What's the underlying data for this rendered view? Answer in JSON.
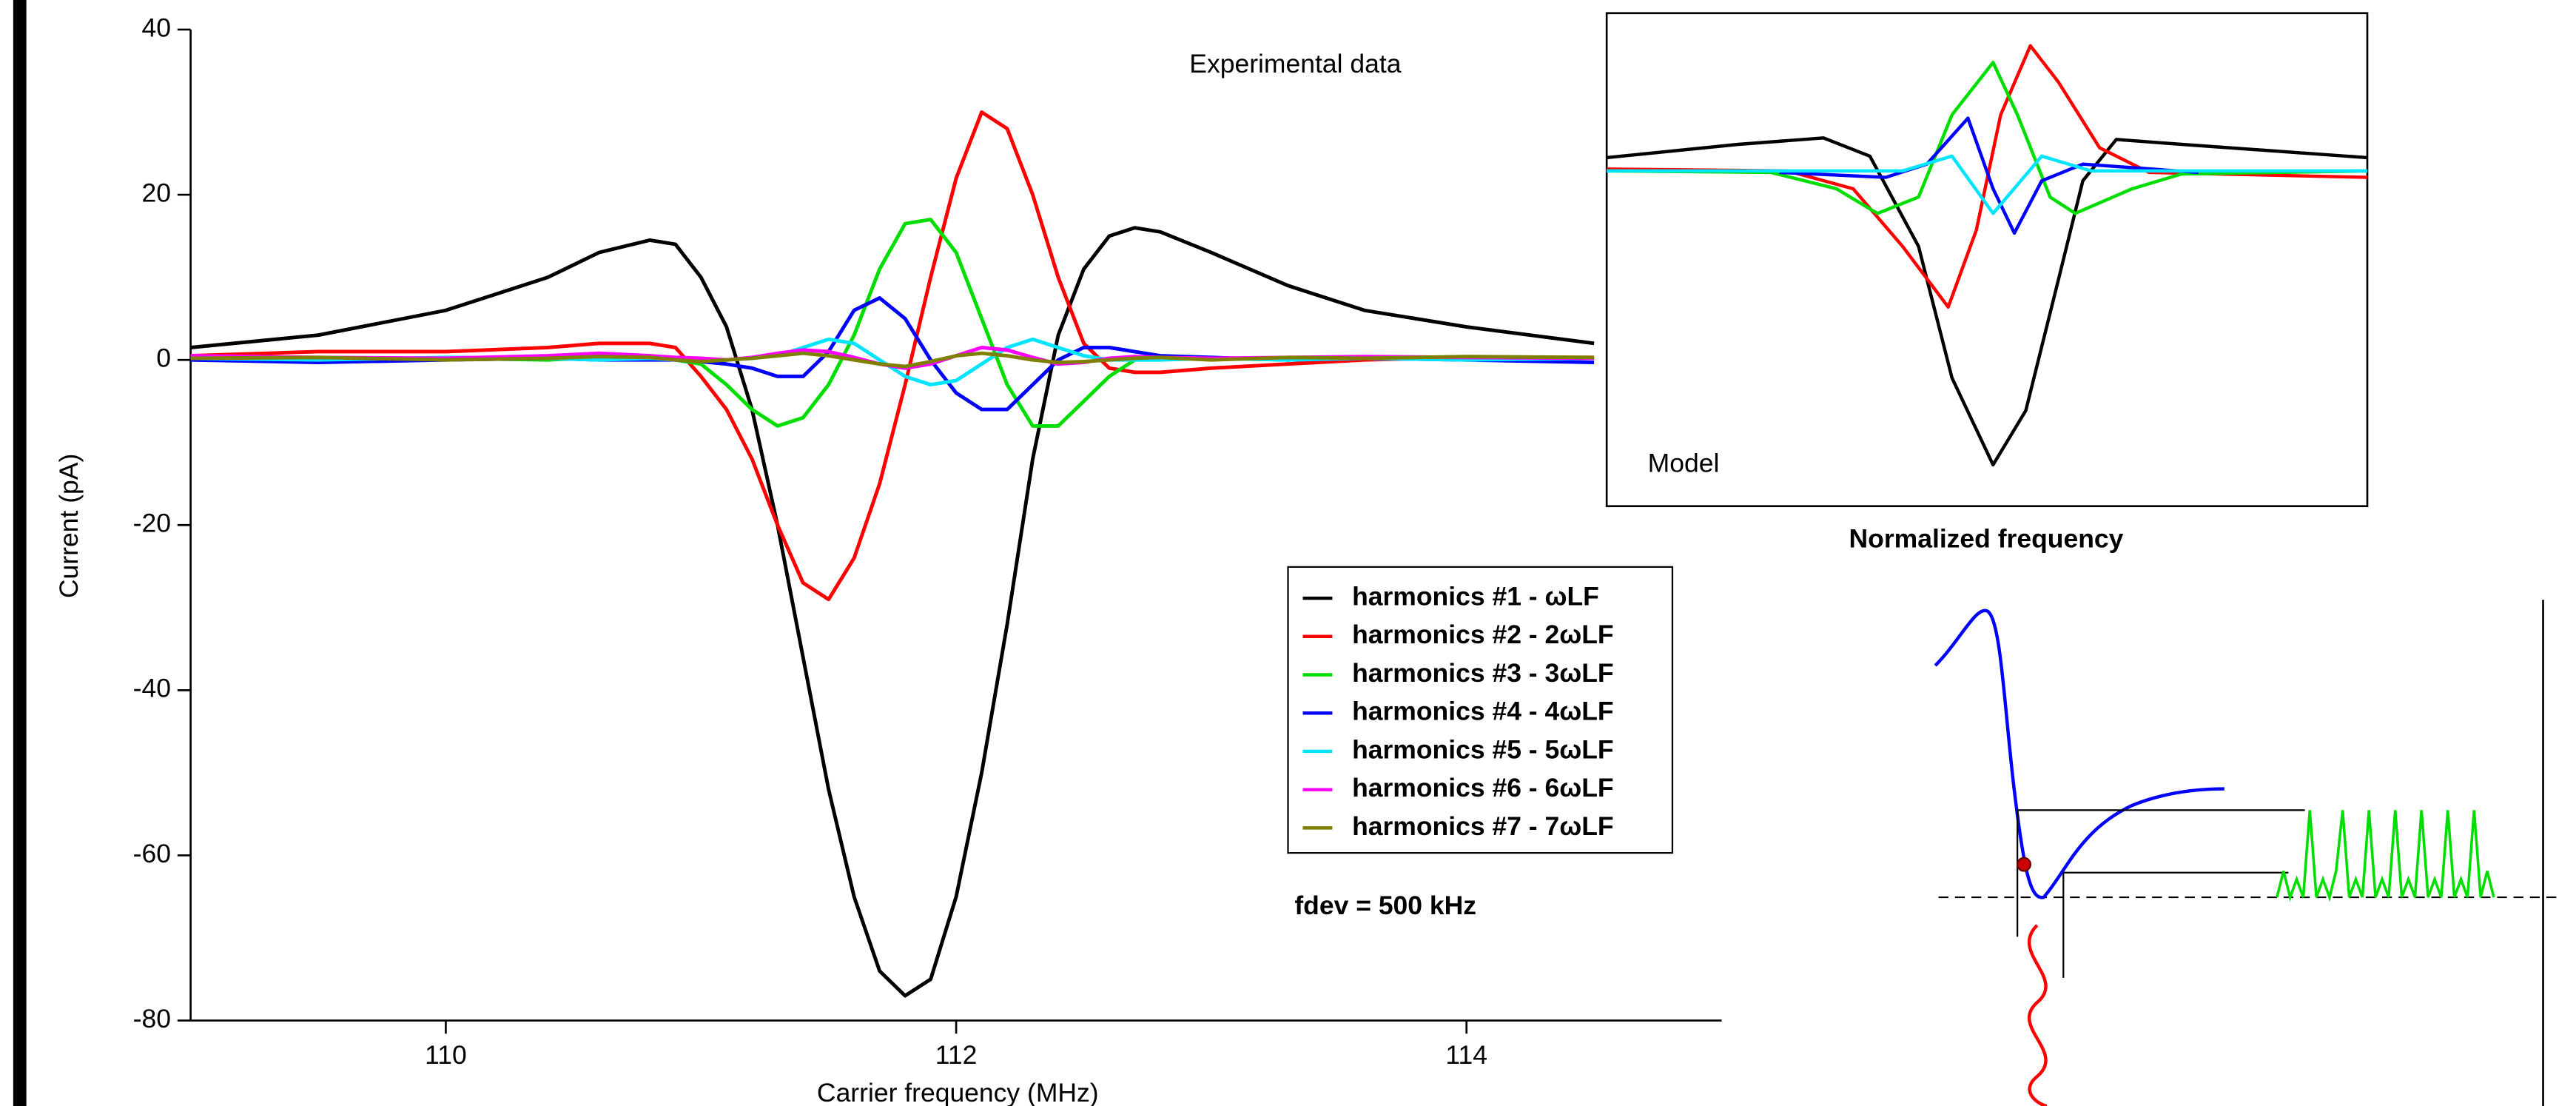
{
  "chart_data": [
    {
      "type": "line",
      "title": "Experimental data",
      "x_label": "Carrier frequency (MHz)",
      "y_label": "Current (pA)",
      "annotation": "fdev = 500 kHz",
      "xlim": [
        109,
        115
      ],
      "xticks": [
        110,
        112,
        114
      ],
      "ylim": [
        -80,
        40
      ],
      "yticks": [
        -80,
        -60,
        -40,
        -20,
        0,
        20,
        40
      ],
      "x": [
        109,
        109.5,
        110,
        110.4,
        110.6,
        110.8,
        110.9,
        111,
        111.1,
        111.2,
        111.3,
        111.4,
        111.5,
        111.6,
        111.7,
        111.8,
        111.9,
        112,
        112.1,
        112.2,
        112.3,
        112.4,
        112.5,
        112.6,
        112.7,
        112.8,
        113,
        113.3,
        113.6,
        114,
        114.5
      ],
      "series": [
        {
          "name": "harmonics #1 - ωLF",
          "color": "#000000",
          "values": [
            1.5,
            3,
            6,
            10,
            13,
            14.5,
            14,
            10,
            4,
            -6,
            -20,
            -36,
            -52,
            -65,
            -74,
            -77,
            -75,
            -65,
            -50,
            -32,
            -12,
            3,
            11,
            15,
            16,
            15.5,
            13,
            9,
            6,
            4,
            2
          ]
        },
        {
          "name": "harmonics #2 - 2ωLF",
          "color": "#ff0000",
          "values": [
            0.5,
            1,
            1,
            1.5,
            2,
            2,
            1.5,
            -2,
            -6,
            -12,
            -20,
            -27,
            -29,
            -24,
            -15,
            -3,
            10,
            22,
            30,
            28,
            20,
            10,
            2,
            -1,
            -1.5,
            -1.5,
            -1,
            -0.5,
            0,
            0.3,
            0.3
          ]
        },
        {
          "name": "harmonics #3 - 3ωLF",
          "color": "#00dd00",
          "values": [
            0.3,
            0,
            0.2,
            0,
            0.3,
            0.2,
            0,
            -0.5,
            -3,
            -6,
            -8,
            -7,
            -3,
            3,
            11,
            16.5,
            17,
            13,
            5,
            -3,
            -8,
            -8,
            -5,
            -2,
            0,
            0.3,
            0.2,
            0,
            0.3,
            0,
            0.2
          ]
        },
        {
          "name": "harmonics #4 - 4ωLF",
          "color": "#0000ff",
          "values": [
            0,
            -0.3,
            0,
            0.2,
            0,
            0,
            0,
            -0.2,
            -0.5,
            -1,
            -2,
            -2,
            1,
            6,
            7.5,
            5,
            0,
            -4,
            -6,
            -6,
            -3,
            0,
            1.5,
            1.5,
            1,
            0.5,
            0.3,
            0,
            0.2,
            0,
            -0.3
          ]
        },
        {
          "name": "harmonics #5 - 5ωLF",
          "color": "#00e5ff",
          "values": [
            0.2,
            0,
            0.3,
            0.2,
            0,
            0.2,
            0,
            0,
            0,
            0.2,
            0.5,
            1.5,
            2.5,
            2,
            0,
            -2,
            -3,
            -2.5,
            -0.5,
            1.5,
            2.5,
            1.5,
            0.5,
            0,
            0,
            0,
            0.2,
            0,
            0.2,
            0,
            0.2
          ]
        },
        {
          "name": "harmonics #6 - 6ωLF",
          "color": "#ff00ff",
          "values": [
            0.5,
            0.3,
            0.2,
            0.5,
            0.8,
            0.5,
            0.3,
            0.2,
            0,
            0.3,
            0.8,
            1.2,
            1,
            0.3,
            -0.5,
            -1,
            -0.5,
            0.5,
            1.5,
            1.2,
            0.3,
            -0.5,
            -0.3,
            0.2,
            0.4,
            0.3,
            0.2,
            0.3,
            0.4,
            0.3,
            0.2
          ]
        },
        {
          "name": "harmonics #7 - 7ωLF",
          "color": "#808000",
          "values": [
            0.2,
            0.3,
            0,
            0.2,
            0.4,
            0.3,
            0,
            -0.2,
            0,
            0.2,
            0.5,
            0.8,
            0.5,
            0,
            -0.5,
            -0.8,
            -0.2,
            0.5,
            0.8,
            0.5,
            0,
            -0.3,
            -0.2,
            0,
            0.2,
            0.3,
            0,
            0.3,
            0.2,
            0.4,
            0.3
          ]
        }
      ]
    },
    {
      "type": "line",
      "title": "Model",
      "x_label": "Normalized frequency",
      "xlim": [
        0,
        100
      ],
      "ylim": [
        -88,
        42
      ],
      "series": [
        {
          "color": "#000000",
          "x": [
            0,
            17.3,
            28.5,
            34.6,
            41,
            45.4,
            50.8,
            55.1,
            59.4,
            62.6,
            67,
            75.6,
            100
          ],
          "values": [
            3.9,
            7.4,
            9.1,
            4.3,
            -19.5,
            -54.2,
            -77.1,
            -62.8,
            -28.2,
            -2.2,
            8.7,
            7.4,
            3.9
          ]
        },
        {
          "color": "#ff0000",
          "x": [
            0,
            23.8,
            32.4,
            38.9,
            44.9,
            48.6,
            51.8,
            55.7,
            59.4,
            64.8,
            71.3,
            100
          ],
          "values": [
            0.9,
            0.4,
            -4.3,
            -19.5,
            -35.5,
            -15.2,
            15.2,
            33.4,
            23.8,
            6.5,
            0,
            -1.3
          ]
        },
        {
          "color": "#00dd00",
          "x": [
            0,
            21.6,
            30.2,
            35.6,
            41,
            45.4,
            50.8,
            54,
            58.3,
            61.6,
            69.1,
            75.6,
            100
          ],
          "values": [
            0.4,
            0,
            -4.3,
            -10.8,
            -6.5,
            15.2,
            29,
            15.2,
            -6.5,
            -10.8,
            -4.3,
            -0.4,
            0.4
          ]
        },
        {
          "color": "#0000ff",
          "x": [
            22.7,
            36.7,
            42.1,
            47.5,
            50.8,
            53.6,
            57.2,
            62.6,
            77.8
          ],
          "values": [
            0,
            -1.3,
            2.2,
            14.3,
            -4.3,
            -16,
            -2.2,
            2.2,
            0
          ]
        },
        {
          "color": "#00e5ff",
          "x": [
            0,
            38.9,
            45.4,
            50.8,
            57.2,
            63.7,
            100
          ],
          "values": [
            0.4,
            0.4,
            4.3,
            -10.8,
            4.3,
            0.4,
            0.4
          ]
        }
      ]
    }
  ]
}
